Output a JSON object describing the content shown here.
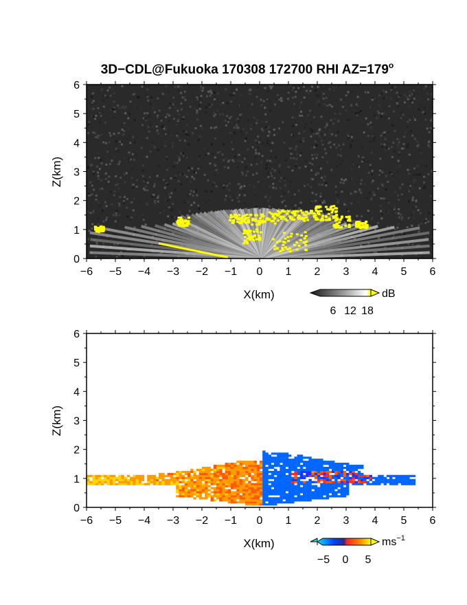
{
  "figure": {
    "title": "3D−CDL@Fukuoka 170308 172700 RHI AZ=179",
    "title_sup": "o"
  },
  "chart_data": [
    {
      "type": "heatmap",
      "name": "reflectivity-panel",
      "xlabel": "X(km)",
      "ylabel": "Z(km)",
      "xlim": [
        -6,
        6
      ],
      "ylim": [
        0,
        6
      ],
      "xticks": [
        "−6",
        "−5",
        "−4",
        "−3",
        "−2",
        "−1",
        "0",
        "1",
        "2",
        "3",
        "4",
        "5",
        "6"
      ],
      "yticks": [
        "0",
        "1",
        "2",
        "3",
        "4",
        "5",
        "6"
      ],
      "colorbar": {
        "unit": "dB",
        "ticks": [
          "6",
          "12",
          "18"
        ],
        "colors": [
          "#1a1a1a",
          "#808080",
          "#ffffff",
          "#ffff00"
        ]
      },
      "background": "#2a2a2a",
      "echo_color": "#ffff00"
    },
    {
      "type": "heatmap",
      "name": "doppler-velocity-panel",
      "xlabel": "X(km)",
      "ylabel": "Z(km)",
      "xlim": [
        -6,
        6
      ],
      "ylim": [
        0,
        6
      ],
      "xticks": [
        "−6",
        "−5",
        "−4",
        "−3",
        "−2",
        "−1",
        "0",
        "1",
        "2",
        "3",
        "4",
        "5",
        "6"
      ],
      "yticks": [
        "0",
        "1",
        "2",
        "3",
        "4",
        "5",
        "6"
      ],
      "colorbar": {
        "unit": "ms",
        "unit_sup": "−1",
        "ticks": [
          "−5",
          "0",
          "5"
        ],
        "colors": [
          "#00e5ff",
          "#0044ff",
          "#ff2222",
          "#ff8c00",
          "#ffff00"
        ]
      }
    }
  ]
}
